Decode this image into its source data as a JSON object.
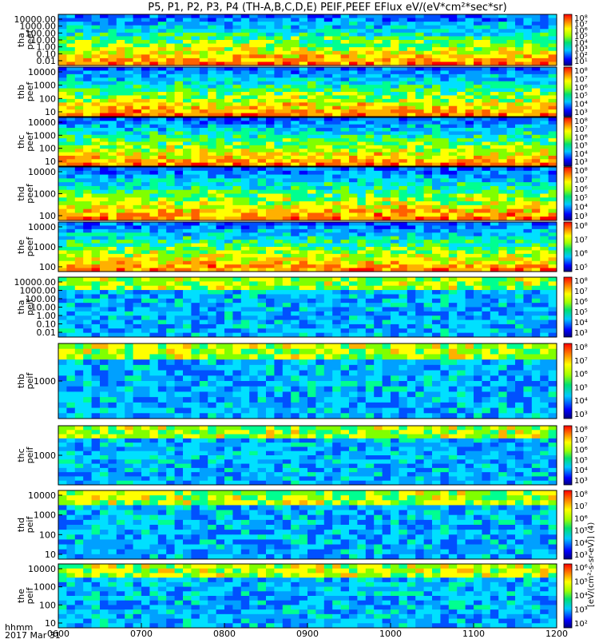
{
  "chart_data": {
    "type": "heatmap",
    "title": "P5, P1, P2, P3, P4 (TH-A,B,C,D,E) PEIF,PEEF EFlux eV/(eV*cm²*sec*sr)",
    "date_label": "2017 Mar 31",
    "time_format_label": "hhmm",
    "x_ticks": [
      "0600",
      "0700",
      "0800",
      "0900",
      "1000",
      "1100",
      "1200"
    ],
    "xlim": [
      "0600",
      "1200"
    ],
    "colorbar_label": "[eV/(cm²-s-sr-eV)] (4)",
    "colorscale": "rainbow",
    "panels": [
      {
        "probe": "tha",
        "product": "peef",
        "yticks": [
          "10000.00",
          "1000.00",
          "100.00",
          "10.00",
          "1.00",
          "0.10",
          "0.01"
        ],
        "cb_ticks": [
          "10⁸",
          "10⁷",
          "10⁶",
          "10⁵",
          "10⁴",
          "10³",
          "10²",
          "10¹"
        ]
      },
      {
        "probe": "thb",
        "product": "peef",
        "yticks": [
          "10000",
          "1000",
          "100",
          "10"
        ],
        "cb_ticks": [
          "10⁸",
          "10⁷",
          "10⁶",
          "10⁵",
          "10⁴",
          "10³"
        ]
      },
      {
        "probe": "thc",
        "product": "peef",
        "yticks": [
          "10000",
          "1000",
          "100",
          "10"
        ],
        "cb_ticks": [
          "10⁸",
          "10⁷",
          "10⁶",
          "10⁵",
          "10⁴",
          "10³"
        ]
      },
      {
        "probe": "thd",
        "product": "peef",
        "yticks": [
          "10000",
          "1000",
          "100"
        ],
        "cb_ticks": [
          "10⁸",
          "10⁷",
          "10⁶",
          "10⁵",
          "10⁴",
          "10³"
        ]
      },
      {
        "probe": "the",
        "product": "peef",
        "yticks": [
          "10000",
          "1000",
          "100"
        ],
        "cb_ticks": [
          "10⁸",
          "10⁷",
          "10⁶",
          "10⁵"
        ]
      },
      {
        "probe": "tha",
        "product": "peif",
        "yticks": [
          "10000.00",
          "1000.00",
          "100.00",
          "10.00",
          "1.00",
          "0.10",
          "0.01"
        ],
        "cb_ticks": [
          "10⁸",
          "10⁷",
          "10⁶",
          "10⁵",
          "10⁴",
          "10³"
        ]
      },
      {
        "probe": "thb",
        "product": "peif",
        "yticks": [
          "1000"
        ],
        "cb_ticks": [
          "10⁸",
          "10⁷",
          "10⁶",
          "10⁵",
          "10⁴",
          "10³"
        ]
      },
      {
        "probe": "thc",
        "product": "peif",
        "yticks": [
          "1000"
        ],
        "cb_ticks": [
          "10⁸",
          "10⁷",
          "10⁶",
          "10⁵",
          "10⁴",
          "10³"
        ]
      },
      {
        "probe": "thd",
        "product": "peif",
        "yticks": [
          "10000",
          "1000",
          "100",
          "10"
        ],
        "cb_ticks": [
          "10⁸",
          "10⁷",
          "10⁶",
          "10⁵",
          "10⁴",
          "10³"
        ]
      },
      {
        "probe": "the",
        "product": "peif",
        "yticks": [
          "10000",
          "1000",
          "100",
          "10"
        ],
        "cb_ticks": [
          "10⁶",
          "10⁵",
          "10⁴",
          "10³",
          "10²"
        ]
      }
    ]
  }
}
